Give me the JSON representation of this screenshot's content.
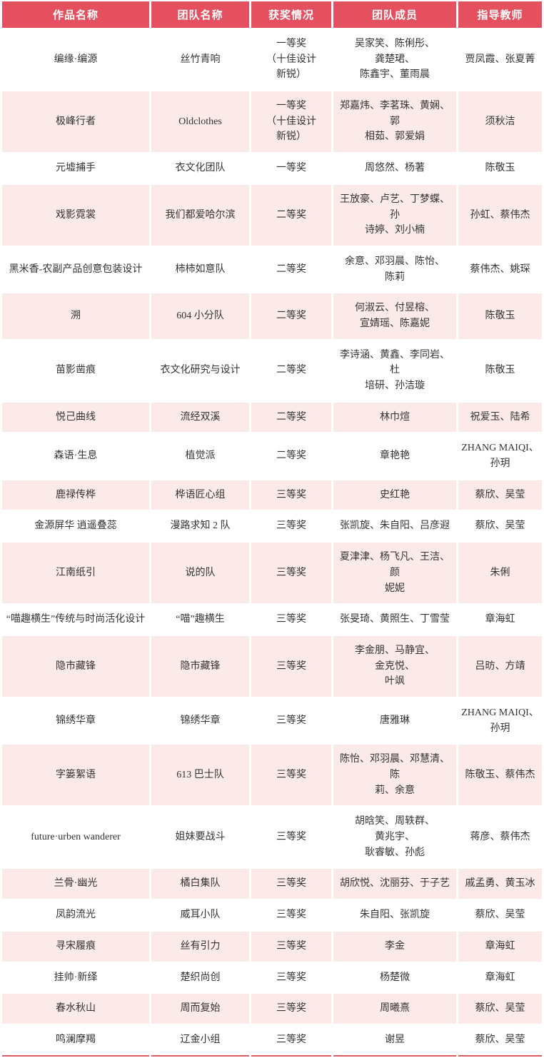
{
  "colors": {
    "header_background": "#E5505F",
    "header_text": "#FFFFFF",
    "row_stripe": "#FBEAE8",
    "row_plain": "#FFFFFF",
    "bottom_rule": "#DB5B60"
  },
  "table": {
    "headers": [
      "作品名称",
      "团队名称",
      "获奖情况",
      "团队成员",
      "指导教师"
    ],
    "rows": [
      {
        "work": "编缘·编源",
        "team": "丝竹青响",
        "award": "一等奖（十佳设计\n新锐）",
        "members": "吴家笑、陈俐彤、龚楚珺、\n陈鑫宇、董雨晨",
        "advisors": "贾凤霞、张夏菁"
      },
      {
        "work": "极峰行者",
        "team": "Oldclothes",
        "award": "一等奖（十佳设计\n新锐）",
        "members": "郑嘉炜、李茗珠、黄娴、郭\n相茹、郭爱娟",
        "advisors": "须秋洁"
      },
      {
        "work": "元墟捕手",
        "team": "衣文化团队",
        "award": "一等奖",
        "members": "周悠然、杨著",
        "advisors": "陈敬玉"
      },
      {
        "work": "戏影霓裳",
        "team": "我们都爱哈尔滨",
        "award": "二等奖",
        "members": "王放豪、卢艺、丁梦蝶、孙\n诗婷、刘小楠",
        "advisors": "孙虹、蔡伟杰"
      },
      {
        "work": "黑米香-农副产品创意包装设计",
        "team": "柿柿如意队",
        "award": "二等奖",
        "members": "余意、邓羽晨、陈怡、陈莉",
        "advisors": "蔡伟杰、姚琛"
      },
      {
        "work": "溯",
        "team": "604 小分队",
        "award": "二等奖",
        "members": "何淑云、付昱榕、\n宣婧瑶、陈嘉妮",
        "advisors": "陈敬玉"
      },
      {
        "work": "苗影凿痕",
        "team": "衣文化研究与设计",
        "award": "二等奖",
        "members": "李诗涵、黄鑫、李同岩、杜\n培研、孙洁璇",
        "advisors": "陈敬玉"
      },
      {
        "work": "悦己曲线",
        "team": "流经双溪",
        "award": "二等奖",
        "members": "林巾煊",
        "advisors": "祝爱玉、陆希"
      },
      {
        "work": "森语·生息",
        "team": "植觉派",
        "award": "二等奖",
        "members": "章艳艳",
        "advisors": "ZHANG MAIQI、孙玥"
      },
      {
        "work": "鹿禄传桦",
        "team": "桦语匠心组",
        "award": "三等奖",
        "members": "史红艳",
        "advisors": "蔡欣、吴莹"
      },
      {
        "work": "金源屏华 逍遥叠蕊",
        "team": "漫路求知 2 队",
        "award": "三等奖",
        "members": "张凯旋、朱自阳、吕彦遐",
        "advisors": "蔡欣、吴莹"
      },
      {
        "work": "江南纸引",
        "team": "说的队",
        "award": "三等奖",
        "members": "夏津津、杨飞凡、王洁、颜\n妮妮",
        "advisors": "朱俐"
      },
      {
        "work": "“喵趣横生”传统与时尚活化设计",
        "team": "“喵”趣横生",
        "award": "三等奖",
        "members": "张旻琦、黄照生、丁雪莹",
        "advisors": "章海虹"
      },
      {
        "work": "隐市藏锋",
        "team": "隐市藏锋",
        "award": "三等奖",
        "members": "李金朋、马静宜、金克悦、\n叶飒",
        "advisors": "吕昉、方靖"
      },
      {
        "work": "锦绣华章",
        "team": "锦绣华章",
        "award": "三等奖",
        "members": "唐雅琳",
        "advisors": "ZHANG MAIQI、孙玥"
      },
      {
        "work": "字篓絮语",
        "team": "613 巴士队",
        "award": "三等奖",
        "members": "陈怡、邓羽晨、邓慧清、陈\n莉、余意",
        "advisors": "陈敬玉、蔡伟杰"
      },
      {
        "work": "future·urben wanderer",
        "team": "姐妹要战斗",
        "award": "三等奖",
        "members": "胡晗笑、周轶群、黄兆宇、\n耿睿敏、孙彪",
        "advisors": "蒋彦、蔡伟杰"
      },
      {
        "work": "兰骨·幽光",
        "team": "橘白集队",
        "award": "三等奖",
        "members": "胡欣悦、沈丽芬、于子艺",
        "advisors": "戚孟勇、黄玉冰"
      },
      {
        "work": "凤韵流光",
        "team": "威耳小队",
        "award": "三等奖",
        "members": "朱自阳、张凯旋",
        "advisors": "蔡欣、吴莹"
      },
      {
        "work": "寻宋履痕",
        "team": "丝有引力",
        "award": "三等奖",
        "members": "李金",
        "advisors": "章海虹"
      },
      {
        "work": "挂帅·新绎",
        "team": "楚织尚创",
        "award": "三等奖",
        "members": "杨楚微",
        "advisors": "章海虹"
      },
      {
        "work": "春水秋山",
        "team": "周而复始",
        "award": "三等奖",
        "members": "周曦熹",
        "advisors": "蔡欣、吴莹"
      },
      {
        "work": "鸣澜摩羯",
        "team": "辽金小组",
        "award": "三等奖",
        "members": "谢昱",
        "advisors": "蔡欣、吴莹"
      }
    ]
  }
}
